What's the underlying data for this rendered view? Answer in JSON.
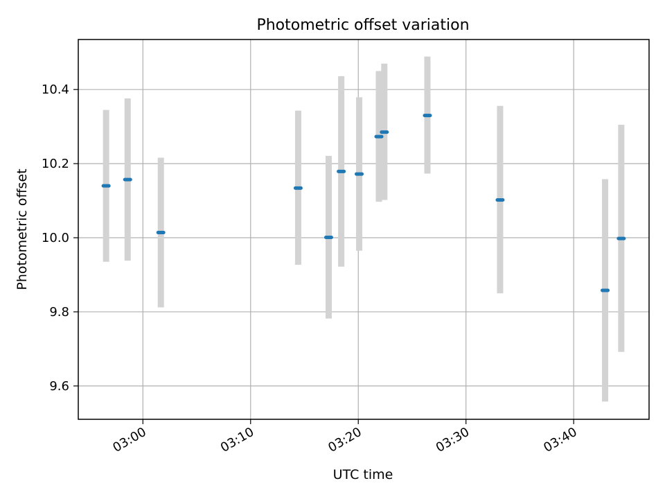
{
  "chart_data": {
    "type": "scatter",
    "title": "Photometric offset variation",
    "xlabel": "UTC time",
    "ylabel": "Photometric offset",
    "xlim": [
      "02:54",
      "03:47"
    ],
    "ylim": [
      9.51,
      10.535
    ],
    "grid": true,
    "x_ticks": [
      "03:00",
      "03:10",
      "03:20",
      "03:30",
      "03:40"
    ],
    "y_ticks": [
      9.6,
      9.8,
      10.0,
      10.2,
      10.4
    ],
    "y_tick_labels": [
      "9.6",
      "9.8",
      "10.0",
      "10.2",
      "10.4"
    ],
    "colors": {
      "point": "#1f77b4",
      "errorbar": "#d3d3d3",
      "grid": "#b0b0b0",
      "frame": "#000000"
    },
    "points": [
      {
        "x": "02:56:35",
        "y": 10.14,
        "ylow": 9.935,
        "yhigh": 10.345
      },
      {
        "x": "02:58:35",
        "y": 10.157,
        "ylow": 9.938,
        "yhigh": 10.376
      },
      {
        "x": "03:01:40",
        "y": 10.014,
        "ylow": 9.812,
        "yhigh": 10.216
      },
      {
        "x": "03:14:25",
        "y": 10.134,
        "ylow": 9.927,
        "yhigh": 10.343
      },
      {
        "x": "03:17:15",
        "y": 10.001,
        "ylow": 9.782,
        "yhigh": 10.221
      },
      {
        "x": "03:18:25",
        "y": 10.179,
        "ylow": 9.922,
        "yhigh": 10.436
      },
      {
        "x": "03:20:05",
        "y": 10.172,
        "ylow": 9.965,
        "yhigh": 10.379
      },
      {
        "x": "03:21:55",
        "y": 10.273,
        "ylow": 10.097,
        "yhigh": 10.45
      },
      {
        "x": "03:22:25",
        "y": 10.285,
        "ylow": 10.102,
        "yhigh": 10.47
      },
      {
        "x": "03:26:25",
        "y": 10.33,
        "ylow": 10.173,
        "yhigh": 10.489
      },
      {
        "x": "03:33:10",
        "y": 10.102,
        "ylow": 9.85,
        "yhigh": 10.356
      },
      {
        "x": "03:42:55",
        "y": 9.858,
        "ylow": 9.558,
        "yhigh": 10.158
      },
      {
        "x": "03:44:25",
        "y": 9.998,
        "ylow": 9.692,
        "yhigh": 10.305
      }
    ]
  }
}
